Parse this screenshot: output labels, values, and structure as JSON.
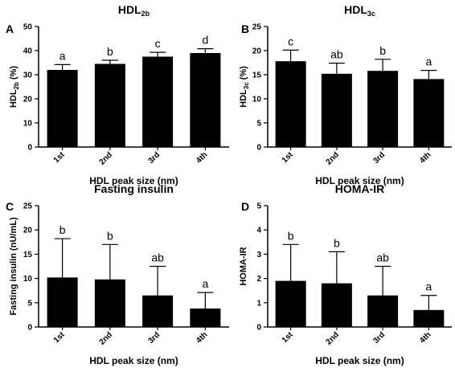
{
  "chart_data": [
    {
      "type": "bar",
      "panel": "A",
      "title": "HDL2b",
      "title_main": "HDL",
      "title_sub": "2b",
      "ylabel": "HDL2b (%)",
      "ylabel_main": "HDL",
      "ylabel_sub": "2b",
      "ylabel_suffix": " (%)",
      "xlabel": "HDL peak size (nm)",
      "categories": [
        "1st",
        "2nd",
        "3rd",
        "4th"
      ],
      "values": [
        32.0,
        34.5,
        37.5,
        39.0
      ],
      "errors": [
        2.2,
        1.5,
        1.8,
        1.8
      ],
      "letters": [
        "a",
        "b",
        "c",
        "d"
      ],
      "ylim": [
        0,
        50
      ],
      "yticks": [
        0,
        10,
        20,
        30,
        40,
        50
      ],
      "grid": false
    },
    {
      "type": "bar",
      "panel": "B",
      "title": "HDL3c",
      "title_main": "HDL",
      "title_sub": "3c",
      "ylabel": "HDL3c (%)",
      "ylabel_main": "HDL",
      "ylabel_sub": "3c",
      "ylabel_suffix": " (%)",
      "xlabel": "HDL peak size (nm)",
      "categories": [
        "1st",
        "2nd",
        "3rd",
        "4th"
      ],
      "values": [
        17.8,
        15.2,
        15.8,
        14.1
      ],
      "errors": [
        2.3,
        2.2,
        2.4,
        1.8
      ],
      "letters": [
        "c",
        "ab",
        "b",
        "a"
      ],
      "ylim": [
        0,
        25
      ],
      "yticks": [
        0,
        5,
        10,
        15,
        20,
        25
      ],
      "grid": false
    },
    {
      "type": "bar",
      "panel": "C",
      "title": "Fasting insulin",
      "title_main": "Fasting insulin",
      "title_sub": "",
      "ylabel": "Fasting insulin (nU/mL)",
      "ylabel_main": "Fasting insulin (nU/mL)",
      "ylabel_sub": "",
      "ylabel_suffix": "",
      "xlabel": "HDL peak size (nm)",
      "categories": [
        "1st",
        "2nd",
        "3rd",
        "4th"
      ],
      "values": [
        10.2,
        9.8,
        6.5,
        3.8
      ],
      "errors": [
        8.0,
        7.2,
        6.0,
        3.3
      ],
      "letters": [
        "b",
        "b",
        "ab",
        "a"
      ],
      "ylim": [
        0,
        25
      ],
      "yticks": [
        0,
        5,
        10,
        15,
        20,
        25
      ],
      "grid": false
    },
    {
      "type": "bar",
      "panel": "D",
      "title": "HOMA-IR",
      "title_main": "HOMA-IR",
      "title_sub": "",
      "ylabel": "HOMA-IR",
      "ylabel_main": "HOMA-IR",
      "ylabel_sub": "",
      "ylabel_suffix": "",
      "xlabel": "HDL peak size (nm)",
      "categories": [
        "1st",
        "2nd",
        "3rd",
        "4th"
      ],
      "values": [
        1.9,
        1.8,
        1.3,
        0.7
      ],
      "errors": [
        1.5,
        1.3,
        1.2,
        0.6
      ],
      "letters": [
        "b",
        "b",
        "ab",
        "a"
      ],
      "ylim": [
        0,
        5
      ],
      "yticks": [
        0,
        1,
        2,
        3,
        4,
        5
      ],
      "grid": false
    }
  ],
  "colors": {
    "bar": "#000000",
    "axis": "#000000",
    "background": "#ffffff"
  }
}
